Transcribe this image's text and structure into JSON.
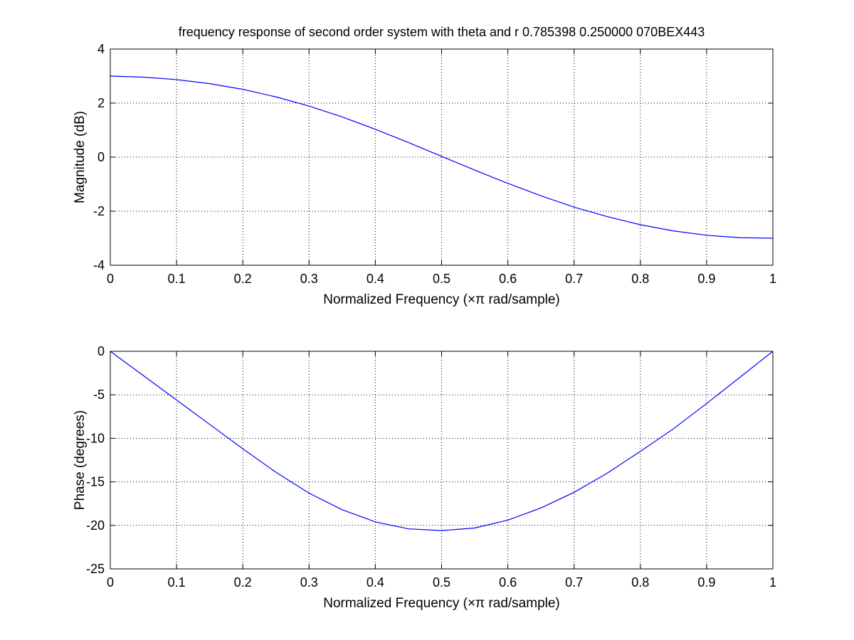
{
  "chart_data": [
    {
      "type": "line",
      "title": "frequency response of second order system with theta and r 0.785398 0.250000 070BEX443",
      "xlabel": "Normalized Frequency  (×π rad/sample)",
      "ylabel": "Magnitude (dB)",
      "xlim": [
        0,
        1
      ],
      "ylim": [
        -4,
        4
      ],
      "xticks": [
        0,
        0.1,
        0.2,
        0.3,
        0.4,
        0.5,
        0.6,
        0.7,
        0.8,
        0.9,
        1
      ],
      "xtick_labels": [
        "0",
        "0.1",
        "0.2",
        "0.3",
        "0.4",
        "0.5",
        "0.6",
        "0.7",
        "0.8",
        "0.9",
        "1"
      ],
      "yticks": [
        -4,
        -2,
        0,
        2,
        4
      ],
      "ytick_labels": [
        "-4",
        "-2",
        "0",
        "2",
        "4"
      ],
      "grid": true,
      "series": [
        {
          "color": "#0000ff",
          "x": [
            0,
            0.05,
            0.1,
            0.15,
            0.2,
            0.25,
            0.3,
            0.35,
            0.4,
            0.45,
            0.5,
            0.55,
            0.6,
            0.65,
            0.7,
            0.75,
            0.8,
            0.85,
            0.9,
            0.95,
            1
          ],
          "y": [
            3.0,
            2.96,
            2.87,
            2.72,
            2.51,
            2.23,
            1.89,
            1.49,
            1.03,
            0.54,
            0.03,
            -0.48,
            -0.97,
            -1.43,
            -1.85,
            -2.2,
            -2.5,
            -2.73,
            -2.89,
            -2.98,
            -3.0
          ]
        }
      ]
    },
    {
      "type": "line",
      "title": "",
      "xlabel": "Normalized Frequency  (×π rad/sample)",
      "ylabel": "Phase (degrees)",
      "xlim": [
        0,
        1
      ],
      "ylim": [
        -25,
        0
      ],
      "xticks": [
        0,
        0.1,
        0.2,
        0.3,
        0.4,
        0.5,
        0.6,
        0.7,
        0.8,
        0.9,
        1
      ],
      "xtick_labels": [
        "0",
        "0.1",
        "0.2",
        "0.3",
        "0.4",
        "0.5",
        "0.6",
        "0.7",
        "0.8",
        "0.9",
        "1"
      ],
      "yticks": [
        -25,
        -20,
        -15,
        -10,
        -5,
        0
      ],
      "ytick_labels": [
        "-25",
        "-20",
        "-15",
        "-10",
        "-5",
        "0"
      ],
      "grid": true,
      "series": [
        {
          "color": "#0000ff",
          "x": [
            0,
            0.05,
            0.1,
            0.15,
            0.2,
            0.25,
            0.3,
            0.35,
            0.4,
            0.45,
            0.5,
            0.55,
            0.6,
            0.65,
            0.7,
            0.75,
            0.8,
            0.85,
            0.9,
            0.95,
            1
          ],
          "y": [
            0,
            -2.8,
            -5.6,
            -8.4,
            -11.2,
            -13.9,
            -16.3,
            -18.2,
            -19.6,
            -20.4,
            -20.6,
            -20.3,
            -19.4,
            -18.0,
            -16.2,
            -14.0,
            -11.5,
            -8.9,
            -6.0,
            -3.0,
            0
          ]
        }
      ]
    }
  ]
}
